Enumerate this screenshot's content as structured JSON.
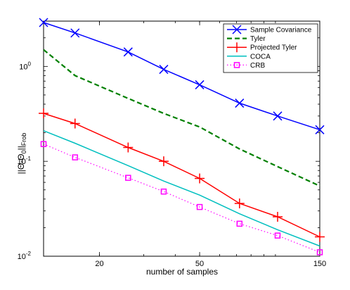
{
  "chart_data": {
    "type": "line",
    "x_scale": "log",
    "y_scale": "log",
    "xlabel": "number of samples",
    "ylabel_main": "||Θ-Θ",
    "ylabel_sub": "0",
    "ylabel_tail": "||",
    "ylabel_frob": "Frob",
    "xlim": [
      12,
      150
    ],
    "ylim": [
      0.01,
      3
    ],
    "x_ticks": [
      20,
      50,
      150
    ],
    "x_tick_labels": [
      "20",
      "50",
      "150"
    ],
    "y_ticks": [
      0.01,
      0.1,
      1
    ],
    "y_tick_labels": [
      {
        "base": "10",
        "exp": "-2"
      },
      {
        "base": "10",
        "exp": "-1"
      },
      {
        "base": "10",
        "exp": "0"
      }
    ],
    "grid": false,
    "legend_position": "top-right",
    "series": [
      {
        "name": "Sample Covariance",
        "color": "#0000ff",
        "style": "solid",
        "marker": "x",
        "x": [
          12,
          16,
          26,
          36,
          50,
          72,
          102,
          150
        ],
        "y": [
          2.9,
          2.25,
          1.42,
          0.93,
          0.64,
          0.41,
          0.3,
          0.215
        ]
      },
      {
        "name": "Tyler",
        "color": "#008000",
        "style": "dashed",
        "marker": "none",
        "x": [
          12,
          16,
          26,
          36,
          50,
          72,
          102,
          150
        ],
        "y": [
          1.5,
          0.8,
          0.46,
          0.32,
          0.23,
          0.135,
          0.088,
          0.055
        ]
      },
      {
        "name": "Projected Tyler",
        "color": "#ff0000",
        "style": "solid",
        "marker": "+",
        "x": [
          12,
          16,
          26,
          36,
          50,
          72,
          102,
          150
        ],
        "y": [
          0.32,
          0.25,
          0.14,
          0.1,
          0.066,
          0.036,
          0.026,
          0.016
        ]
      },
      {
        "name": "COCA",
        "color": "#00bfbf",
        "style": "solid",
        "marker": "none",
        "x": [
          12,
          16,
          26,
          36,
          50,
          72,
          102,
          150
        ],
        "y": [
          0.21,
          0.155,
          0.09,
          0.062,
          0.044,
          0.028,
          0.019,
          0.0128
        ]
      },
      {
        "name": "CRB",
        "color": "#ff00ff",
        "style": "dotted",
        "marker": "square",
        "x": [
          12,
          16,
          26,
          36,
          50,
          72,
          102,
          150
        ],
        "y": [
          0.152,
          0.11,
          0.067,
          0.048,
          0.033,
          0.022,
          0.0165,
          0.011
        ]
      }
    ]
  }
}
